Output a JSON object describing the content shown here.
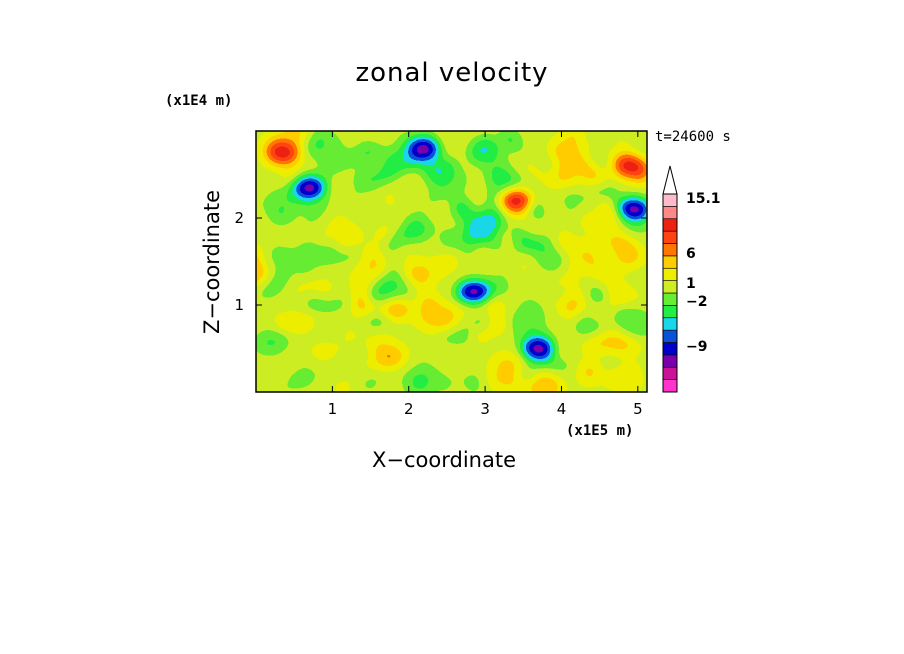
{
  "chart_data": {
    "type": "heatmap",
    "title": "zonal velocity",
    "xlabel": "X−coordinate",
    "ylabel": "Z−coordinate",
    "x_unit_label": "(x1E5 m)",
    "y_unit_label": "(x1E4 m)",
    "time_label": "t=24600 s",
    "xlim": [
      0,
      5.12
    ],
    "ylim": [
      0,
      3.0
    ],
    "x_ticks": [
      1,
      2,
      3,
      4,
      5
    ],
    "y_ticks": [
      1,
      2
    ],
    "x_tick_labels": [
      "1",
      "2",
      "3",
      "4",
      "5"
    ],
    "y_tick_labels": [
      "1",
      "2"
    ],
    "colorbar": {
      "labels": [
        {
          "text": "15.1",
          "value": 15.1
        },
        {
          "text": "6",
          "value": 6
        },
        {
          "text": "1",
          "value": 1
        },
        {
          "text": "−2",
          "value": -2
        },
        {
          "text": "−9",
          "value": -9
        }
      ],
      "colors": [
        "#ff33cc",
        "#cc1199",
        "#7a00aa",
        "#0000cc",
        "#0a50d8",
        "#1ad7e8",
        "#22ee44",
        "#66ee33",
        "#ccee22",
        "#eeee00",
        "#ffcc00",
        "#ff7700",
        "#ff4411",
        "#ee2211",
        "#ff8888",
        "#ffbbcc"
      ]
    },
    "features": [
      {
        "kind": "negative-jet",
        "x": 0.7,
        "z": 2.35
      },
      {
        "kind": "negative-jet",
        "x": 2.2,
        "z": 2.8
      },
      {
        "kind": "negative-jet",
        "x": 2.85,
        "z": 1.15
      },
      {
        "kind": "negative-jet",
        "x": 3.7,
        "z": 0.5
      },
      {
        "kind": "negative-jet",
        "x": 4.95,
        "z": 2.1
      },
      {
        "kind": "positive-jet",
        "x": 4.9,
        "z": 2.6
      },
      {
        "kind": "positive-jet",
        "x": 0.35,
        "z": 2.75
      },
      {
        "kind": "positive-jet",
        "x": 3.4,
        "z": 2.2
      }
    ]
  }
}
